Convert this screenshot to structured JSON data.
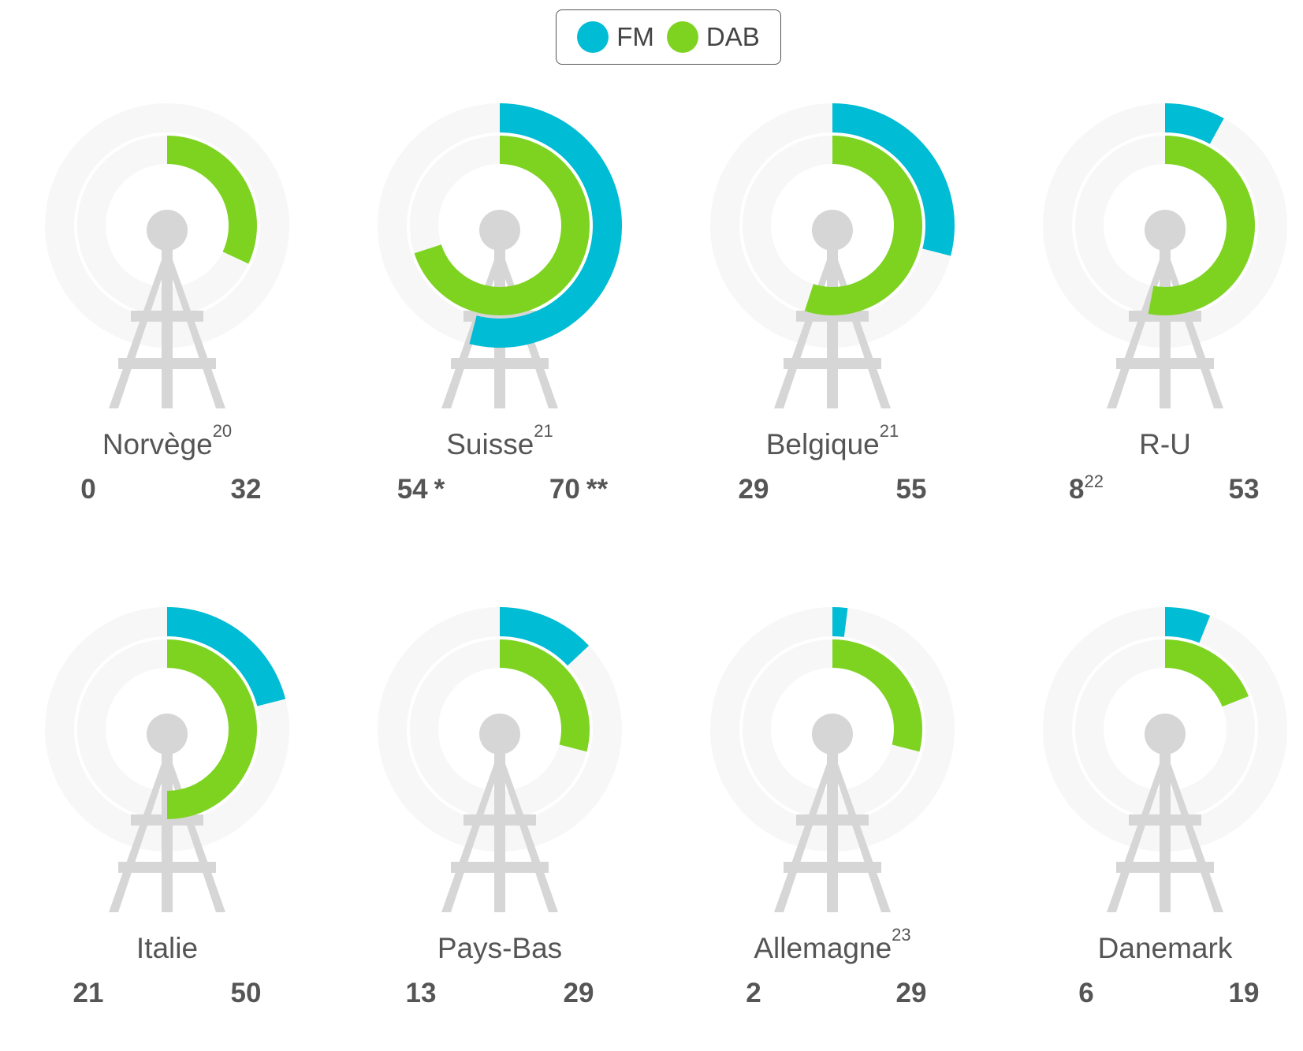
{
  "legend": {
    "fm_label": "FM",
    "dab_label": "DAB"
  },
  "colors": {
    "fm": "#00BCD4",
    "dab": "#7ED321",
    "track": "#F7F7F7",
    "tower": "#D6D6D6"
  },
  "chart_data": {
    "type": "radial-bar",
    "scale_max": 100,
    "unit": "%",
    "series": [
      {
        "name": "FM",
        "color": "#00BCD4"
      },
      {
        "name": "DAB",
        "color": "#7ED321"
      }
    ],
    "countries": [
      {
        "name": "Norvège",
        "footnote": "20",
        "fm": 0,
        "fm_label": "0",
        "fm_marker": "",
        "dab": 32,
        "dab_label": "32",
        "dab_marker": ""
      },
      {
        "name": "Suisse",
        "footnote": "21",
        "fm": 54,
        "fm_label": "54",
        "fm_marker": "*",
        "dab": 70,
        "dab_label": "70",
        "dab_marker": "**"
      },
      {
        "name": "Belgique",
        "footnote": "21",
        "fm": 29,
        "fm_label": "29",
        "fm_marker": "",
        "dab": 55,
        "dab_label": "55",
        "dab_marker": ""
      },
      {
        "name": "R-U",
        "footnote": "",
        "fm": 8,
        "fm_label": "8",
        "fm_marker": "22",
        "dab": 53,
        "dab_label": "53",
        "dab_marker": ""
      },
      {
        "name": "Italie",
        "footnote": "",
        "fm": 21,
        "fm_label": "21",
        "fm_marker": "",
        "dab": 50,
        "dab_label": "50",
        "dab_marker": ""
      },
      {
        "name": "Pays-Bas",
        "footnote": "",
        "fm": 13,
        "fm_label": "13",
        "fm_marker": "",
        "dab": 29,
        "dab_label": "29",
        "dab_marker": ""
      },
      {
        "name": "Allemagne",
        "footnote": "23",
        "fm": 2,
        "fm_label": "2",
        "fm_marker": "",
        "dab": 29,
        "dab_label": "29",
        "dab_marker": ""
      },
      {
        "name": "Danemark",
        "footnote": "",
        "fm": 6,
        "fm_label": "6",
        "fm_marker": "",
        "dab": 19,
        "dab_label": "19",
        "dab_marker": ""
      }
    ]
  }
}
